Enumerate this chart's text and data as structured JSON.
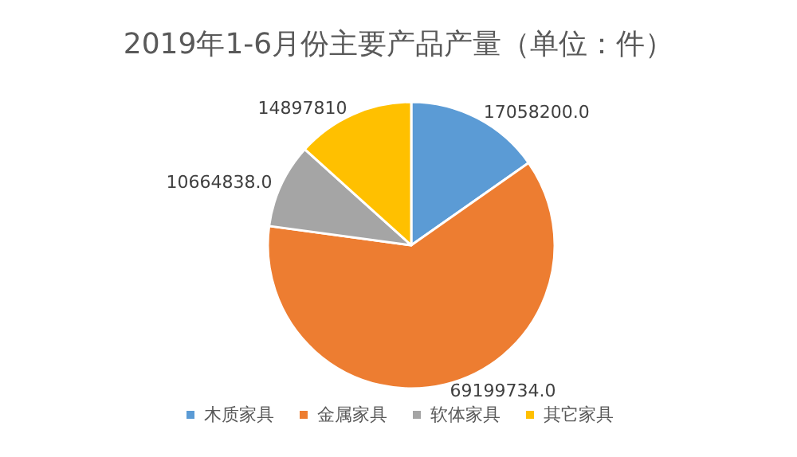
{
  "chart_data": {
    "type": "pie",
    "title": "2019年1-6月份主要产品产量（单位：件）",
    "categories": [
      "木质家具",
      "金属家具",
      "软体家具",
      "其它家具"
    ],
    "values": [
      17058200.0,
      69199734.0,
      10664838.0,
      14897810
    ],
    "value_labels": [
      "17058200.0",
      "69199734.0",
      "10664838.0",
      "14897810"
    ],
    "colors": [
      "#5b9bd5",
      "#ed7d31",
      "#a5a5a5",
      "#ffc000"
    ],
    "legend": "bottom"
  }
}
